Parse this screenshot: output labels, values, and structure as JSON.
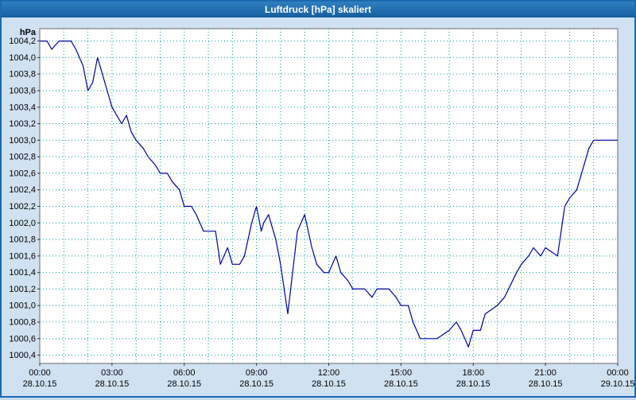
{
  "window": {
    "title": "Luftdruck [hPa] skaliert"
  },
  "chart_data": {
    "type": "line",
    "title": "Luftdruck [hPa] skaliert",
    "xlabel": "",
    "ylabel": "hPa",
    "ylim": [
      1000.3,
      1004.35
    ],
    "xlim": [
      0,
      24
    ],
    "x_grid_step_hours": 1,
    "grid": "dotted teal, hourly vertical and 0.2 hPa horizontal",
    "line_color": "#0000a0",
    "grid_color": "#00a0a0",
    "y_ticks": [
      1004.2,
      1004.0,
      1003.8,
      1003.6,
      1003.4,
      1003.2,
      1003.0,
      1002.8,
      1002.6,
      1002.4,
      1002.2,
      1002.0,
      1001.8,
      1001.6,
      1001.4,
      1001.2,
      1001.0,
      1000.8,
      1000.6,
      1000.4
    ],
    "y_tick_labels": [
      "1004,2",
      "1004,0",
      "1003,8",
      "1003,6",
      "1003,4",
      "1003,2",
      "1003,0",
      "1002,8",
      "1002,6",
      "1002,4",
      "1002,2",
      "1002,0",
      "1001,8",
      "1001,6",
      "1001,4",
      "1001,2",
      "1001,0",
      "1000,8",
      "1000,6",
      "1000,4"
    ],
    "x_ticks": [
      {
        "h": 0,
        "time": "00:00",
        "date": "28.10.15"
      },
      {
        "h": 3,
        "time": "03:00",
        "date": "28.10.15"
      },
      {
        "h": 6,
        "time": "06:00",
        "date": "28.10.15"
      },
      {
        "h": 9,
        "time": "09:00",
        "date": "28.10.15"
      },
      {
        "h": 12,
        "time": "12:00",
        "date": "28.10.15"
      },
      {
        "h": 15,
        "time": "15:00",
        "date": "28.10.15"
      },
      {
        "h": 18,
        "time": "18:00",
        "date": "28.10.15"
      },
      {
        "h": 21,
        "time": "21:00",
        "date": "28.10.15"
      },
      {
        "h": 24,
        "time": "00:00",
        "date": "29.10.15"
      }
    ],
    "series": [
      {
        "name": "Luftdruck",
        "points": [
          [
            0,
            1004.2
          ],
          [
            0.3,
            1004.2
          ],
          [
            0.5,
            1004.1
          ],
          [
            0.8,
            1004.2
          ],
          [
            1.3,
            1004.2
          ],
          [
            1.5,
            1004.1
          ],
          [
            1.8,
            1003.9
          ],
          [
            2,
            1003.6
          ],
          [
            2.2,
            1003.7
          ],
          [
            2.4,
            1004.0
          ],
          [
            2.6,
            1003.8
          ],
          [
            2.8,
            1003.6
          ],
          [
            3,
            1003.4
          ],
          [
            3.2,
            1003.3
          ],
          [
            3.4,
            1003.2
          ],
          [
            3.6,
            1003.3
          ],
          [
            3.8,
            1003.1
          ],
          [
            4,
            1003.0
          ],
          [
            4.3,
            1002.9
          ],
          [
            4.5,
            1002.8
          ],
          [
            4.8,
            1002.7
          ],
          [
            5,
            1002.6
          ],
          [
            5.3,
            1002.6
          ],
          [
            5.5,
            1002.5
          ],
          [
            5.8,
            1002.4
          ],
          [
            6,
            1002.2
          ],
          [
            6.3,
            1002.2
          ],
          [
            6.5,
            1002.1
          ],
          [
            6.8,
            1001.9
          ],
          [
            7.3,
            1001.9
          ],
          [
            7.5,
            1001.5
          ],
          [
            7.8,
            1001.7
          ],
          [
            8,
            1001.5
          ],
          [
            8.3,
            1001.5
          ],
          [
            8.5,
            1001.6
          ],
          [
            8.8,
            1002.0
          ],
          [
            9,
            1002.2
          ],
          [
            9.2,
            1001.9
          ],
          [
            9.3,
            1002.0
          ],
          [
            9.5,
            1002.1
          ],
          [
            9.8,
            1001.8
          ],
          [
            10,
            1001.5
          ],
          [
            10.3,
            1000.9
          ],
          [
            10.7,
            1001.9
          ],
          [
            11,
            1002.1
          ],
          [
            11.3,
            1001.7
          ],
          [
            11.5,
            1001.5
          ],
          [
            11.8,
            1001.4
          ],
          [
            12,
            1001.4
          ],
          [
            12.3,
            1001.6
          ],
          [
            12.5,
            1001.4
          ],
          [
            12.8,
            1001.3
          ],
          [
            13,
            1001.2
          ],
          [
            13.5,
            1001.2
          ],
          [
            13.8,
            1001.1
          ],
          [
            14,
            1001.2
          ],
          [
            14.5,
            1001.2
          ],
          [
            14.8,
            1001.1
          ],
          [
            15,
            1001.0
          ],
          [
            15.3,
            1001.0
          ],
          [
            15.5,
            1000.8
          ],
          [
            15.8,
            1000.6
          ],
          [
            16.5,
            1000.6
          ],
          [
            17,
            1000.7
          ],
          [
            17.3,
            1000.8
          ],
          [
            17.5,
            1000.7
          ],
          [
            17.8,
            1000.5
          ],
          [
            18,
            1000.7
          ],
          [
            18.3,
            1000.7
          ],
          [
            18.5,
            1000.9
          ],
          [
            19,
            1001.0
          ],
          [
            19.3,
            1001.1
          ],
          [
            19.8,
            1001.4
          ],
          [
            20,
            1001.5
          ],
          [
            20.3,
            1001.6
          ],
          [
            20.5,
            1001.7
          ],
          [
            20.8,
            1001.6
          ],
          [
            21,
            1001.7
          ],
          [
            21.5,
            1001.6
          ],
          [
            21.8,
            1002.2
          ],
          [
            22,
            1002.3
          ],
          [
            22.3,
            1002.4
          ],
          [
            22.5,
            1002.6
          ],
          [
            22.8,
            1002.9
          ],
          [
            23,
            1003.0
          ],
          [
            24,
            1003.0
          ]
        ]
      }
    ]
  }
}
